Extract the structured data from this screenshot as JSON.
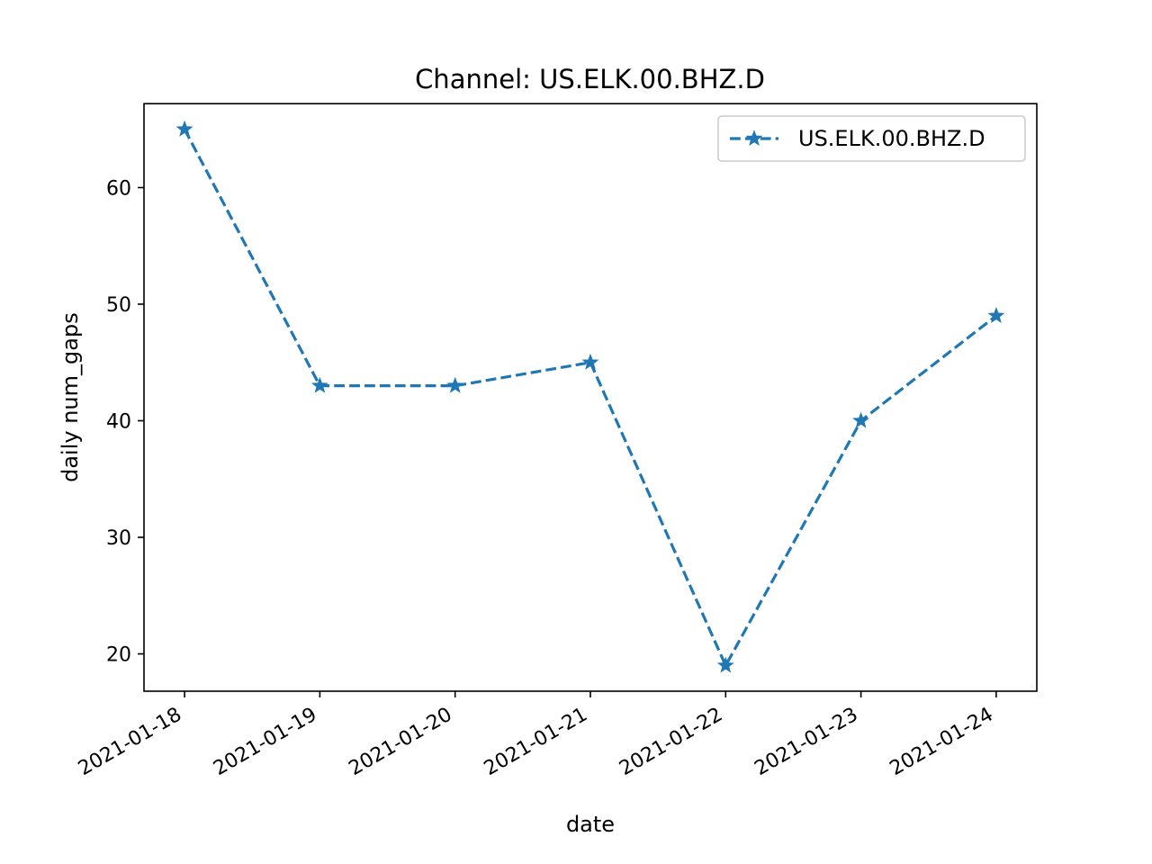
{
  "chart_data": {
    "type": "line",
    "title": "Channel: US.ELK.00.BHZ.D",
    "xlabel": "date",
    "ylabel": "daily num_gaps",
    "categories": [
      "2021-01-18",
      "2021-01-19",
      "2021-01-20",
      "2021-01-21",
      "2021-01-22",
      "2021-01-23",
      "2021-01-24"
    ],
    "yticks": [
      20,
      30,
      40,
      50,
      60
    ],
    "ylim": [
      16.8,
      67.2
    ],
    "grid": false,
    "legend_position": "top-right",
    "series": [
      {
        "name": "US.ELK.00.BHZ.D",
        "color": "#1f77b4",
        "line_style": "dashed",
        "marker": "star",
        "values": [
          65,
          43,
          43,
          45,
          19,
          40,
          49
        ]
      }
    ]
  }
}
